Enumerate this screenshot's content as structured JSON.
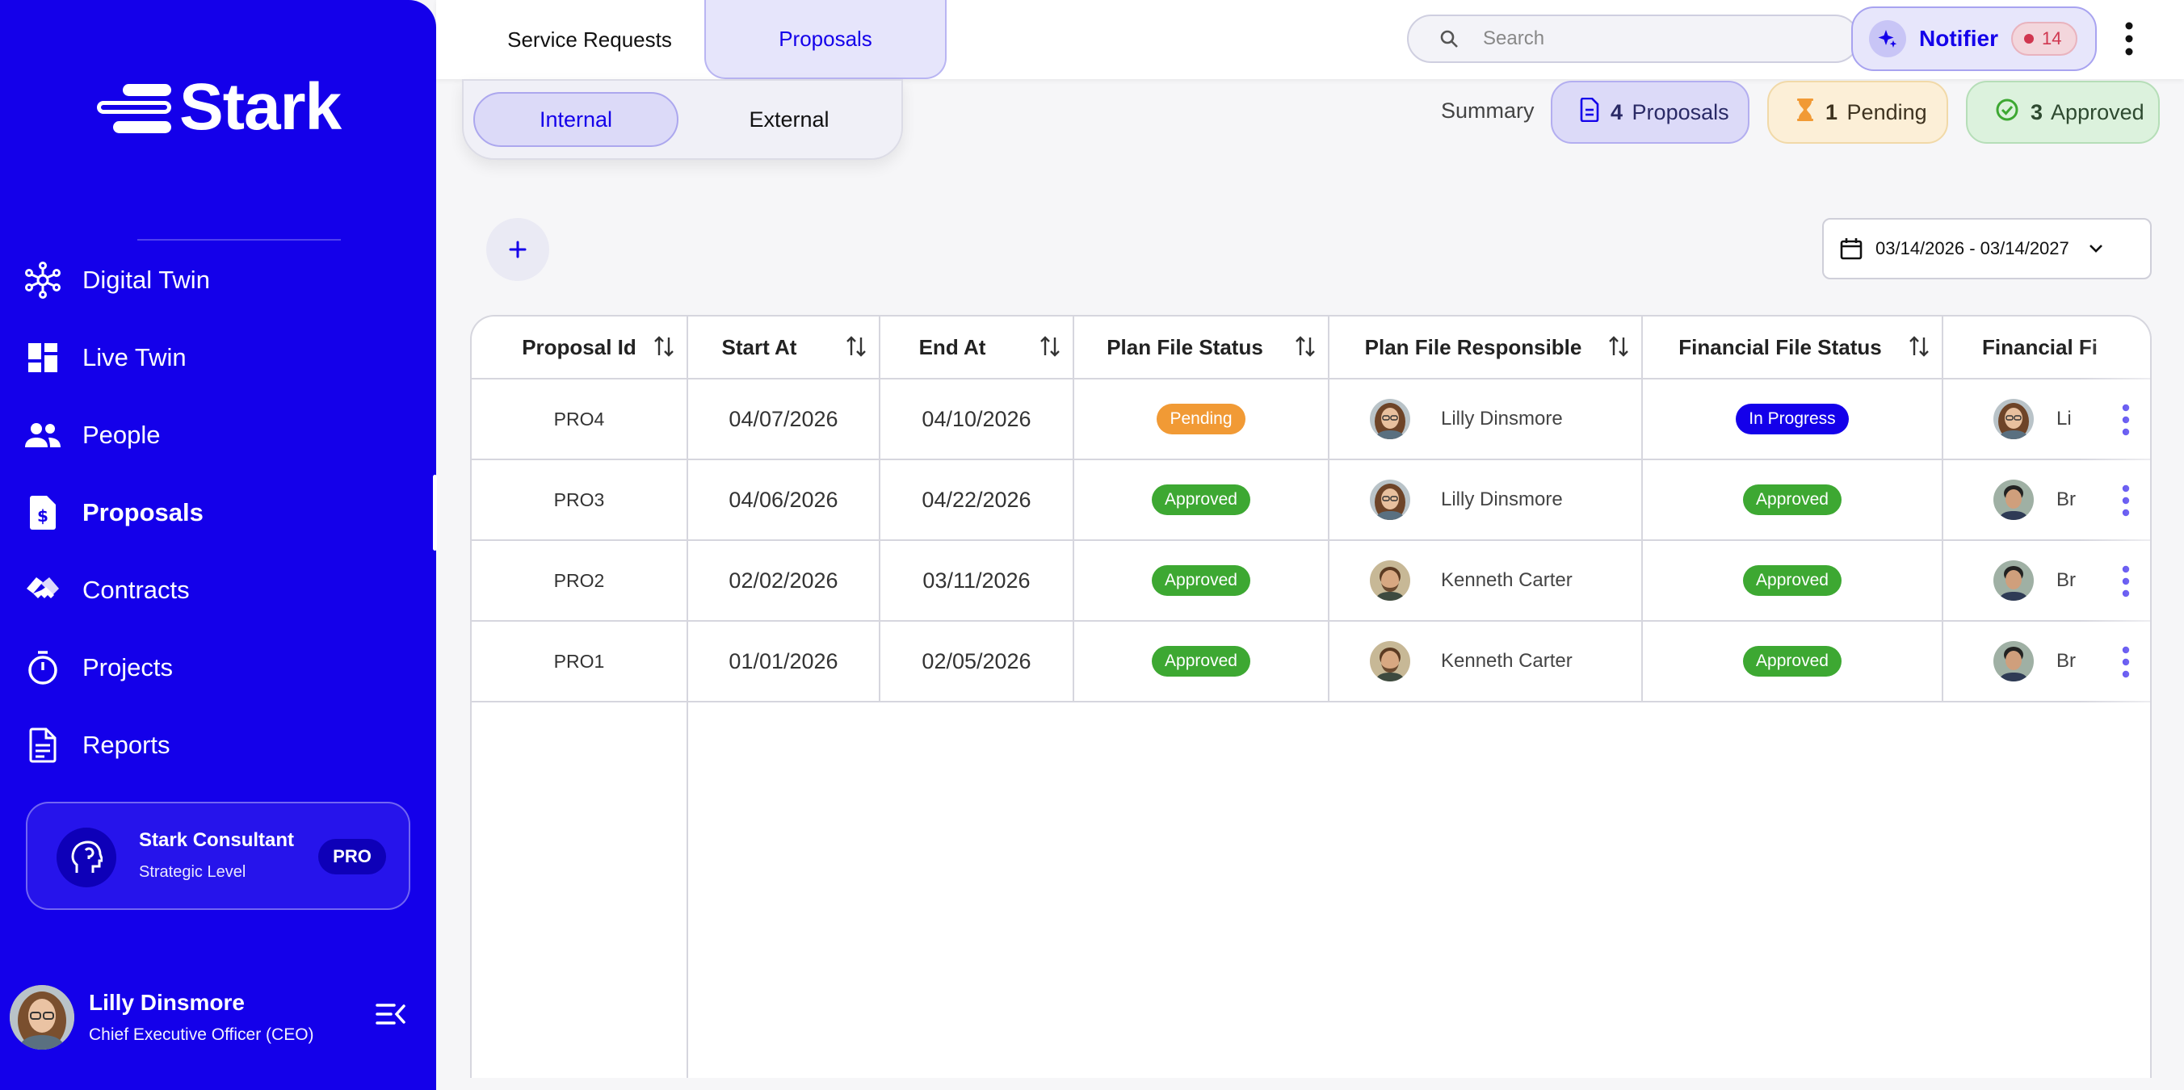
{
  "brand": {
    "name": "Stark"
  },
  "nav": {
    "items": [
      {
        "label": "Digital Twin",
        "icon": "network-icon"
      },
      {
        "label": "Live Twin",
        "icon": "dashboard-icon"
      },
      {
        "label": "People",
        "icon": "people-icon"
      },
      {
        "label": "Proposals",
        "icon": "proposal-doc-icon",
        "active": true
      },
      {
        "label": "Contracts",
        "icon": "handshake-icon"
      },
      {
        "label": "Projects",
        "icon": "timer-icon"
      },
      {
        "label": "Reports",
        "icon": "report-doc-icon"
      }
    ]
  },
  "consultant": {
    "title": "Stark Consultant",
    "level": "Strategic Level",
    "badge": "PRO"
  },
  "user": {
    "name": "Lilly Dinsmore",
    "role": "Chief Executive Officer (CEO)"
  },
  "topbar": {
    "tabs": [
      {
        "label": "Service Requests",
        "active": false
      },
      {
        "label": "Proposals",
        "active": true
      }
    ],
    "search_placeholder": "Search",
    "notifier": {
      "label": "Notifier",
      "count": "14"
    }
  },
  "subtabs": [
    {
      "label": "Internal",
      "active": true
    },
    {
      "label": "External",
      "active": false
    }
  ],
  "summary": {
    "label": "Summary",
    "proposals": {
      "count": "4",
      "label": "Proposals"
    },
    "pending": {
      "count": "1",
      "label": "Pending"
    },
    "approved": {
      "count": "3",
      "label": "Approved"
    }
  },
  "date_range": "03/14/2026 - 03/14/2027",
  "table": {
    "columns": [
      "Proposal Id",
      "Start At",
      "End At",
      "Plan File Status",
      "Plan File Responsible",
      "Financial File Status",
      "Financial Fi"
    ],
    "rows": [
      {
        "id": "PRO4",
        "start": "04/07/2026",
        "end": "04/10/2026",
        "plan_status": "Pending",
        "plan_responsible": "Lilly Dinsmore",
        "fin_status": "In Progress",
        "fin_responsible": "Li"
      },
      {
        "id": "PRO3",
        "start": "04/06/2026",
        "end": "04/22/2026",
        "plan_status": "Approved",
        "plan_responsible": "Lilly Dinsmore",
        "fin_status": "Approved",
        "fin_responsible": "Br"
      },
      {
        "id": "PRO2",
        "start": "02/02/2026",
        "end": "03/11/2026",
        "plan_status": "Approved",
        "plan_responsible": "Kenneth Carter",
        "fin_status": "Approved",
        "fin_responsible": "Br"
      },
      {
        "id": "PRO1",
        "start": "01/01/2026",
        "end": "02/05/2026",
        "plan_status": "Approved",
        "plan_responsible": "Kenneth Carter",
        "fin_status": "Approved",
        "fin_responsible": "Br"
      }
    ]
  },
  "colors": {
    "primary": "#1400ea",
    "pending": "#f19a35",
    "approved": "#3da832",
    "in_progress": "#1400ea"
  }
}
